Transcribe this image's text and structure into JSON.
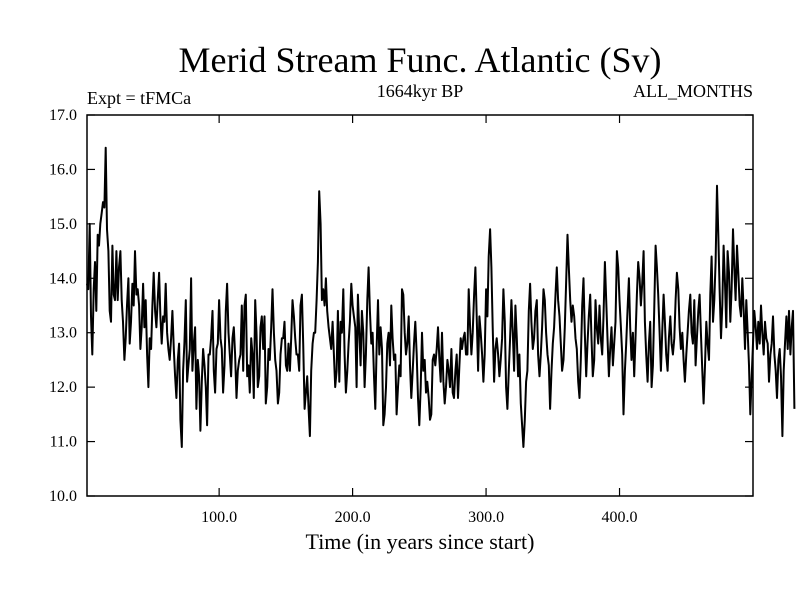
{
  "chart_data": {
    "type": "line",
    "title": "Merid Stream Func. Atlantic (Sv)",
    "subtitle_left": "Expt = tFMCa",
    "subtitle_center": "1664kyr BP",
    "subtitle_right": "ALL_MONTHS",
    "xlabel": "Time (in years since start)",
    "ylabel": "",
    "xlim": [
      1,
      500
    ],
    "ylim": [
      10.0,
      17.0
    ],
    "x_ticks": [
      100,
      200,
      300,
      400
    ],
    "x_tick_labels": [
      "100.0",
      "200.0",
      "300.0",
      "400.0"
    ],
    "y_ticks": [
      10,
      11,
      12,
      13,
      14,
      15,
      16,
      17
    ],
    "y_tick_labels": [
      "10.0",
      "11.0",
      "12.0",
      "13.0",
      "14.0",
      "15.0",
      "16.0",
      "17.0"
    ],
    "grid": false,
    "series": [
      {
        "name": "Merid Stream Func. Atlantic",
        "x_start": 1,
        "x_step": 1,
        "values": [
          13.9,
          13.8,
          15.0,
          13.3,
          12.6,
          13.8,
          14.3,
          13.4,
          14.8,
          14.6,
          15.0,
          15.2,
          15.4,
          15.3,
          16.4,
          14.9,
          14.5,
          13.4,
          13.2,
          14.6,
          13.7,
          13.6,
          14.5,
          13.6,
          14.2,
          14.5,
          13.6,
          13.2,
          12.5,
          12.9,
          13.5,
          14.0,
          12.8,
          13.2,
          13.9,
          13.5,
          14.5,
          13.7,
          13.8,
          13.5,
          12.7,
          13.1,
          13.9,
          13.1,
          13.6,
          12.6,
          12.0,
          12.9,
          12.7,
          13.5,
          14.1,
          13.4,
          13.1,
          13.6,
          14.1,
          13.3,
          12.8,
          13.3,
          13.2,
          13.9,
          13.0,
          12.7,
          12.5,
          12.9,
          13.4,
          12.7,
          12.2,
          11.8,
          12.5,
          12.8,
          11.4,
          10.9,
          12.3,
          12.8,
          13.6,
          12.1,
          12.4,
          12.7,
          14.0,
          12.3,
          12.8,
          13.1,
          11.6,
          12.5,
          12.2,
          11.2,
          12.1,
          12.7,
          12.4,
          12.0,
          11.3,
          12.6,
          12.6,
          12.9,
          13.4,
          12.3,
          11.9,
          12.7,
          12.8,
          13.6,
          12.9,
          12.7,
          11.9,
          12.4,
          13.4,
          13.9,
          13.0,
          12.6,
          12.2,
          12.9,
          13.1,
          12.6,
          11.8,
          12.3,
          12.5,
          12.6,
          13.5,
          12.3,
          13.5,
          13.7,
          12.2,
          12.4,
          11.9,
          12.9,
          12.6,
          11.8,
          13.6,
          13.0,
          12.0,
          12.2,
          13.1,
          13.3,
          12.7,
          13.3,
          11.7,
          12.0,
          12.7,
          12.5,
          13.1,
          13.8,
          13.0,
          12.5,
          12.3,
          11.7,
          11.9,
          12.6,
          12.9,
          12.9,
          13.2,
          12.4,
          12.3,
          12.8,
          12.3,
          12.9,
          13.6,
          13.3,
          12.9,
          12.6,
          12.6,
          12.3,
          13.5,
          13.7,
          12.8,
          11.6,
          11.9,
          12.2,
          11.6,
          11.1,
          12.3,
          12.8,
          13.0,
          13.0,
          13.6,
          14.3,
          15.6,
          15.0,
          13.6,
          13.8,
          13.5,
          14.0,
          13.4,
          13.1,
          12.9,
          12.7,
          13.2,
          12.6,
          12.0,
          12.3,
          13.4,
          12.1,
          13.2,
          13.0,
          13.8,
          12.6,
          11.9,
          12.3,
          12.8,
          13.2,
          13.9,
          13.5,
          13.3,
          13.1,
          12.0,
          13.7,
          13.0,
          12.4,
          13.4,
          13.0,
          12.0,
          12.6,
          13.6,
          14.2,
          13.4,
          12.8,
          13.0,
          12.2,
          11.6,
          12.7,
          13.6,
          12.6,
          13.1,
          12.7,
          11.3,
          11.5,
          12.0,
          12.8,
          13.0,
          12.4,
          13.5,
          12.9,
          12.5,
          12.6,
          11.5,
          12.0,
          12.4,
          12.2,
          13.8,
          13.7,
          13.0,
          12.6,
          12.8,
          13.3,
          12.4,
          11.8,
          12.3,
          12.8,
          13.2,
          12.6,
          11.8,
          11.3,
          12.0,
          13.0,
          12.3,
          12.5,
          11.9,
          12.1,
          11.8,
          11.4,
          11.5,
          12.5,
          12.6,
          12.4,
          12.7,
          13.1,
          12.5,
          12.1,
          13.0,
          12.1,
          11.7,
          12.0,
          12.5,
          12.3,
          12.0,
          12.7,
          11.9,
          11.8,
          12.3,
          12.6,
          11.8,
          12.4,
          12.9,
          12.7,
          12.9,
          13.0,
          12.6,
          12.6,
          13.8,
          13.1,
          12.6,
          13.0,
          13.7,
          14.2,
          13.3,
          12.3,
          13.3,
          13.0,
          12.6,
          12.1,
          12.6,
          13.8,
          13.3,
          14.4,
          14.9,
          14.2,
          13.1,
          12.1,
          12.7,
          12.9,
          12.6,
          12.2,
          12.5,
          12.9,
          13.8,
          13.2,
          12.0,
          11.6,
          12.3,
          12.9,
          13.6,
          13.0,
          12.3,
          13.5,
          12.9,
          12.2,
          12.6,
          11.7,
          11.3,
          10.9,
          11.4,
          12.1,
          12.3,
          13.4,
          13.9,
          13.2,
          12.7,
          12.9,
          13.4,
          13.6,
          12.6,
          12.2,
          12.6,
          13.1,
          13.8,
          13.6,
          13.0,
          12.6,
          12.4,
          11.6,
          12.3,
          12.8,
          13.1,
          13.7,
          14.2,
          13.6,
          13.3,
          12.8,
          12.3,
          12.5,
          13.1,
          13.9,
          14.8,
          14.2,
          13.6,
          13.2,
          13.5,
          13.3,
          12.9,
          12.7,
          12.1,
          11.8,
          12.5,
          13.5,
          14.0,
          13.0,
          12.2,
          12.8,
          13.3,
          13.7,
          12.9,
          12.2,
          12.5,
          13.6,
          13.1,
          12.8,
          13.5,
          12.9,
          12.6,
          13.3,
          14.3,
          13.6,
          12.9,
          12.2,
          12.7,
          13.1,
          12.4,
          12.8,
          13.2,
          14.5,
          14.2,
          13.6,
          13.1,
          12.6,
          11.5,
          12.3,
          12.8,
          13.4,
          14.0,
          13.1,
          12.5,
          13.0,
          12.2,
          12.9,
          13.7,
          14.3,
          14.0,
          13.5,
          13.9,
          14.5,
          13.2,
          12.6,
          12.1,
          12.8,
          13.2,
          12.0,
          12.4,
          13.4,
          14.6,
          14.2,
          13.7,
          13.0,
          12.3,
          13.0,
          13.7,
          13.2,
          12.6,
          12.3,
          12.9,
          13.3,
          12.8,
          12.6,
          12.9,
          13.6,
          14.1,
          13.8,
          13.1,
          12.7,
          13.0,
          12.5,
          12.1,
          12.6,
          13.0,
          13.4,
          13.7,
          13.0,
          12.8,
          13.6,
          12.4,
          12.9,
          13.4,
          13.7,
          13.0,
          12.3,
          11.7,
          12.4,
          13.2,
          12.8,
          12.5,
          13.7,
          14.4,
          13.2,
          13.6,
          14.3,
          15.7,
          14.8,
          13.8,
          12.9,
          13.5,
          14.6,
          13.9,
          13.1,
          14.5,
          14.1,
          13.2,
          13.8,
          14.9,
          14.2,
          13.6,
          14.6,
          14.1,
          13.5,
          13.3,
          14.0,
          13.4,
          12.7,
          13.6,
          13.0,
          12.4,
          11.5,
          12.2,
          12.8,
          13.4,
          13.1,
          12.7,
          13.2,
          12.8,
          13.5,
          13.0,
          12.6,
          13.2,
          12.9,
          12.8,
          12.1,
          12.6,
          12.8,
          13.3,
          12.6,
          12.3,
          11.8,
          12.5,
          12.7,
          12.2,
          11.1,
          12.3,
          12.8,
          13.3,
          12.7,
          13.4,
          12.6,
          13.1,
          13.4,
          11.6
        ]
      }
    ]
  }
}
